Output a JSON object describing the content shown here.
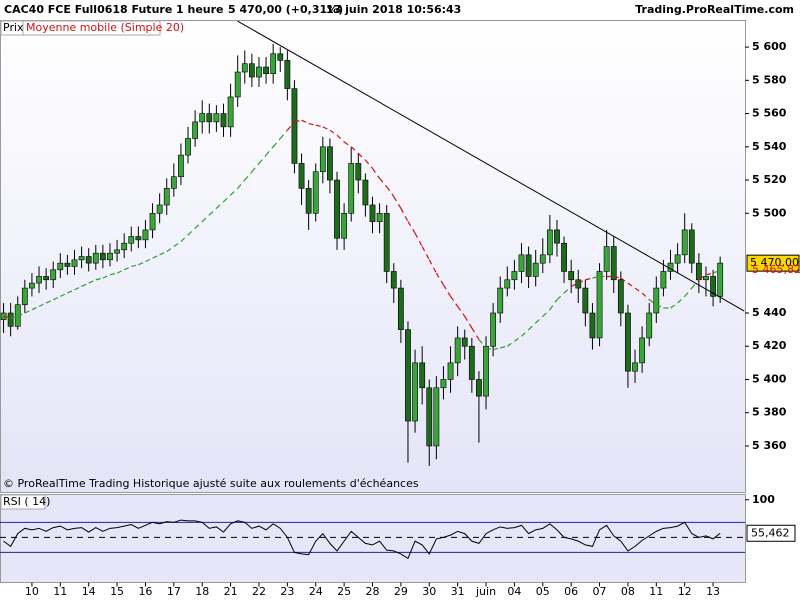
{
  "header": {
    "instrument": "CAC40 FCE Full0618 Future",
    "period": "1 heure",
    "quote": "5 470,00 (+0,31%)",
    "datetime": "13 juin 2018 10:56:43",
    "site": "Trading.ProRealTime.com"
  },
  "chart_data": [
    {
      "type": "candlestick",
      "note": "© ProRealTime Trading  Historique ajusté suite aux roulements d'échéances",
      "xlim": [
        -0.5,
        104.5
      ],
      "ylim": [
        5332,
        5616
      ],
      "yticks": [
        {
          "value": 5600,
          "label": "5 600"
        },
        {
          "value": 5580,
          "label": "5 580"
        },
        {
          "value": 5560,
          "label": "5 560"
        },
        {
          "value": 5540,
          "label": "5 540"
        },
        {
          "value": 5520,
          "label": "5 520"
        },
        {
          "value": 5500,
          "label": "5 500"
        },
        {
          "value": 5440,
          "label": "5 440"
        },
        {
          "value": 5420,
          "label": "5 420"
        },
        {
          "value": 5400,
          "label": "5 400"
        },
        {
          "value": 5380,
          "label": "5 380"
        },
        {
          "value": 5360,
          "label": "5 360"
        }
      ],
      "series": [
        {
          "name": "Prix",
          "up_color": "#3aa63a",
          "down_color": "#1e6b1e",
          "last_label": "5 470,00",
          "open": [
            5436,
            5440,
            5432,
            5445,
            5455,
            5458,
            5462,
            5460,
            5466,
            5470,
            5468,
            5472,
            5474,
            5470,
            5476,
            5472,
            5476,
            5478,
            5482,
            5486,
            5484,
            5490,
            5500,
            5505,
            5515,
            5522,
            5535,
            5545,
            5555,
            5560,
            5555,
            5560,
            5552,
            5570,
            5585,
            5590,
            5582,
            5588,
            5584,
            5596,
            5592,
            5575,
            5530,
            5515,
            5500,
            5525,
            5540,
            5520,
            5485,
            5500,
            5530,
            5520,
            5505,
            5495,
            5500,
            5465,
            5455,
            5430,
            5375,
            5410,
            5395,
            5360,
            5395,
            5400,
            5410,
            5425,
            5420,
            5400,
            5390,
            5420,
            5440,
            5455,
            5460,
            5465,
            5475,
            5462,
            5470,
            5475,
            5490,
            5482,
            5465,
            5460,
            5455,
            5440,
            5425,
            5465,
            5480,
            5460,
            5440,
            5405,
            5410,
            5425,
            5440,
            5455,
            5465,
            5470,
            5475,
            5490,
            5470,
            5460,
            5462,
            5450
          ],
          "high": [
            5446,
            5446,
            5450,
            5460,
            5464,
            5468,
            5467,
            5471,
            5476,
            5475,
            5478,
            5480,
            5479,
            5481,
            5481,
            5482,
            5484,
            5488,
            5492,
            5492,
            5496,
            5506,
            5512,
            5521,
            5530,
            5542,
            5552,
            5562,
            5568,
            5566,
            5565,
            5566,
            5578,
            5595,
            5598,
            5596,
            5594,
            5594,
            5602,
            5600,
            5598,
            5580,
            5536,
            5520,
            5530,
            5546,
            5545,
            5525,
            5506,
            5540,
            5536,
            5524,
            5510,
            5506,
            5505,
            5470,
            5460,
            5435,
            5418,
            5420,
            5400,
            5402,
            5408,
            5420,
            5432,
            5430,
            5425,
            5405,
            5426,
            5446,
            5462,
            5468,
            5472,
            5482,
            5480,
            5478,
            5485,
            5499,
            5496,
            5486,
            5472,
            5466,
            5460,
            5446,
            5470,
            5490,
            5486,
            5465,
            5445,
            5418,
            5432,
            5446,
            5462,
            5472,
            5478,
            5482,
            5500,
            5494,
            5476,
            5468,
            5466,
            5474
          ],
          "low": [
            5428,
            5426,
            5430,
            5440,
            5450,
            5452,
            5454,
            5455,
            5461,
            5463,
            5463,
            5467,
            5465,
            5466,
            5467,
            5468,
            5471,
            5473,
            5477,
            5479,
            5479,
            5485,
            5494,
            5499,
            5510,
            5517,
            5530,
            5540,
            5548,
            5548,
            5549,
            5546,
            5546,
            5564,
            5578,
            5576,
            5576,
            5578,
            5578,
            5585,
            5568,
            5524,
            5505,
            5490,
            5495,
            5518,
            5512,
            5478,
            5478,
            5495,
            5512,
            5498,
            5488,
            5488,
            5458,
            5446,
            5422,
            5350,
            5368,
            5385,
            5348,
            5352,
            5388,
            5392,
            5402,
            5412,
            5392,
            5362,
            5382,
            5414,
            5434,
            5450,
            5454,
            5458,
            5455,
            5456,
            5464,
            5470,
            5474,
            5458,
            5452,
            5446,
            5432,
            5418,
            5420,
            5460,
            5452,
            5432,
            5395,
            5398,
            5404,
            5420,
            5434,
            5450,
            5460,
            5464,
            5470,
            5464,
            5452,
            5450,
            5444,
            5446
          ],
          "close": [
            5440,
            5432,
            5445,
            5455,
            5458,
            5462,
            5460,
            5466,
            5470,
            5468,
            5472,
            5474,
            5470,
            5476,
            5472,
            5476,
            5478,
            5482,
            5486,
            5484,
            5490,
            5500,
            5505,
            5515,
            5522,
            5535,
            5545,
            5555,
            5560,
            5555,
            5560,
            5552,
            5570,
            5585,
            5590,
            5582,
            5588,
            5584,
            5596,
            5592,
            5575,
            5530,
            5515,
            5500,
            5525,
            5540,
            5520,
            5485,
            5500,
            5530,
            5520,
            5505,
            5495,
            5500,
            5465,
            5455,
            5430,
            5375,
            5410,
            5395,
            5360,
            5395,
            5400,
            5410,
            5425,
            5420,
            5400,
            5390,
            5420,
            5440,
            5455,
            5460,
            5465,
            5475,
            5462,
            5470,
            5475,
            5490,
            5482,
            5465,
            5460,
            5455,
            5440,
            5425,
            5465,
            5480,
            5460,
            5440,
            5405,
            5410,
            5425,
            5440,
            5455,
            5465,
            5470,
            5475,
            5490,
            5470,
            5460,
            5462,
            5450,
            5470
          ]
        },
        {
          "name": "Moyenne mobile (Simple 20)",
          "color_above": "#d01010",
          "color_below": "#2e9e2e",
          "last_label": "5 465,82",
          "values": [
            5438,
            5437,
            5438,
            5440,
            5442,
            5444,
            5446,
            5448,
            5450,
            5452,
            5454,
            5456,
            5458,
            5460,
            5461,
            5463,
            5464,
            5466,
            5468,
            5469,
            5471,
            5473,
            5475,
            5477,
            5480,
            5483,
            5487,
            5491,
            5495,
            5499,
            5503,
            5507,
            5511,
            5515,
            5520,
            5525,
            5530,
            5535,
            5540,
            5545,
            5550,
            5555,
            5556,
            5554,
            5553,
            5552,
            5550,
            5547,
            5543,
            5540,
            5536,
            5532,
            5527,
            5521,
            5516,
            5510,
            5503,
            5495,
            5488,
            5480,
            5472,
            5464,
            5457,
            5450,
            5444,
            5438,
            5431,
            5424,
            5419,
            5418,
            5419,
            5420,
            5423,
            5426,
            5430,
            5434,
            5438,
            5442,
            5448,
            5452,
            5456,
            5458,
            5460,
            5461,
            5462,
            5462,
            5462,
            5461,
            5458,
            5455,
            5452,
            5448,
            5445,
            5443,
            5443,
            5446,
            5450,
            5455,
            5460,
            5463,
            5464,
            5465.82
          ]
        }
      ],
      "trendline": {
        "x": [
          33,
          104.4
        ],
        "y": [
          5615.6,
          5441.2
        ]
      }
    },
    {
      "type": "line",
      "xlim": [
        -0.5,
        104.5
      ],
      "ylim": [
        -10,
        107
      ],
      "yticks": [
        100
      ],
      "levels": [
        30,
        50,
        70
      ],
      "xticks": [
        {
          "value": 4,
          "label": "10"
        },
        {
          "value": 8,
          "label": "11"
        },
        {
          "value": 12,
          "label": "14"
        },
        {
          "value": 16,
          "label": "15"
        },
        {
          "value": 20,
          "label": "16"
        },
        {
          "value": 24,
          "label": "17"
        },
        {
          "value": 28,
          "label": "18"
        },
        {
          "value": 32,
          "label": "21"
        },
        {
          "value": 36,
          "label": "22"
        },
        {
          "value": 40,
          "label": "23"
        },
        {
          "value": 44,
          "label": "24"
        },
        {
          "value": 48,
          "label": "25"
        },
        {
          "value": 52,
          "label": "28"
        },
        {
          "value": 56,
          "label": "29"
        },
        {
          "value": 60,
          "label": "30"
        },
        {
          "value": 64,
          "label": "31"
        },
        {
          "value": 68,
          "label": "juin"
        },
        {
          "value": 72,
          "label": "04"
        },
        {
          "value": 76,
          "label": "05"
        },
        {
          "value": 80,
          "label": "06"
        },
        {
          "value": 84,
          "label": "07"
        },
        {
          "value": 88,
          "label": "08"
        },
        {
          "value": 92,
          "label": "11"
        },
        {
          "value": 96,
          "label": "12"
        },
        {
          "value": 100,
          "label": "13"
        }
      ],
      "series": [
        {
          "name": "RSI ( 14)",
          "color": "#000000",
          "last_label": "55,462",
          "values": [
            45,
            38,
            55,
            62,
            60,
            62,
            58,
            63,
            65,
            60,
            62,
            63,
            57,
            63,
            58,
            62,
            63,
            65,
            67,
            62,
            66,
            70,
            68,
            71,
            70,
            73,
            72,
            72,
            70,
            62,
            64,
            57,
            68,
            72,
            70,
            62,
            65,
            60,
            68,
            62,
            50,
            30,
            28,
            27,
            45,
            55,
            42,
            32,
            45,
            58,
            50,
            42,
            40,
            45,
            33,
            32,
            28,
            22,
            45,
            40,
            28,
            48,
            50,
            53,
            58,
            55,
            45,
            42,
            55,
            60,
            64,
            62,
            63,
            66,
            55,
            60,
            62,
            68,
            60,
            50,
            48,
            45,
            40,
            38,
            60,
            66,
            52,
            45,
            32,
            38,
            46,
            52,
            58,
            62,
            63,
            65,
            70,
            55,
            50,
            52,
            48,
            55.462
          ]
        }
      ]
    }
  ]
}
